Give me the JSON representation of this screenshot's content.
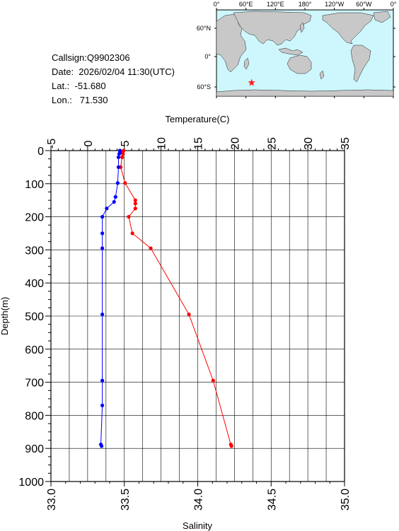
{
  "info": {
    "callsign": "Callsign:Q9902306",
    "date": "Date:  2026/02/04 11:30(UTC)",
    "lat": "Lat.:  -51.680",
    "lon": "Lon.:   71.530"
  },
  "map": {
    "lon_labels": [
      "0°",
      "60°E",
      "120°E",
      "180°",
      "120°W",
      "60°W",
      "0°"
    ],
    "lat_labels": [
      "60°N",
      "0°",
      "60°S"
    ],
    "ocean_color": "#cdf7fd",
    "land_color": "#c8c8c8",
    "marker": {
      "lon": 71.53,
      "lat": -51.68,
      "color": "#ff2020",
      "icon": "star-icon"
    }
  },
  "chart_data": {
    "type": "line",
    "ylabel": "Depth(m)",
    "ylim": [
      1000,
      0
    ],
    "y_ticks": [
      "0",
      "100",
      "200",
      "300",
      "400",
      "500",
      "600",
      "700",
      "800",
      "900",
      "1000"
    ],
    "grid": true,
    "temperature_axis": {
      "label": "Temperature(C)",
      "range": [
        -5,
        35
      ],
      "ticks": [
        "-5",
        "0",
        "5",
        "10",
        "15",
        "20",
        "25",
        "30",
        "35"
      ]
    },
    "salinity_axis": {
      "label": "Salinity",
      "range": [
        33.0,
        35.0
      ],
      "ticks": [
        "33.0",
        "33.5",
        "34.0",
        "34.5",
        "35.0"
      ]
    },
    "series": [
      {
        "key": "temperature",
        "axis": "temperature",
        "color": "#ff0000",
        "points": [
          [
            4.9,
            0
          ],
          [
            4.8,
            5
          ],
          [
            4.8,
            10
          ],
          [
            4.7,
            20
          ],
          [
            4.5,
            50
          ],
          [
            5.1,
            98
          ],
          [
            6.5,
            150
          ],
          [
            6.5,
            160
          ],
          [
            6.5,
            175
          ],
          [
            5.6,
            200
          ],
          [
            6.1,
            250
          ],
          [
            8.6,
            295
          ],
          [
            13.8,
            495
          ],
          [
            17.1,
            695
          ],
          [
            19.5,
            888
          ],
          [
            19.6,
            893
          ]
        ]
      },
      {
        "key": "salinity",
        "axis": "salinity",
        "color": "#0000ff",
        "points": [
          [
            33.47,
            0
          ],
          [
            33.47,
            5
          ],
          [
            33.465,
            10
          ],
          [
            33.46,
            20
          ],
          [
            33.46,
            50
          ],
          [
            33.455,
            98
          ],
          [
            33.44,
            140
          ],
          [
            33.43,
            155
          ],
          [
            33.38,
            175
          ],
          [
            33.35,
            200
          ],
          [
            33.35,
            250
          ],
          [
            33.35,
            295
          ],
          [
            33.35,
            495
          ],
          [
            33.35,
            695
          ],
          [
            33.35,
            770
          ],
          [
            33.34,
            888
          ],
          [
            33.345,
            893
          ]
        ]
      }
    ]
  }
}
